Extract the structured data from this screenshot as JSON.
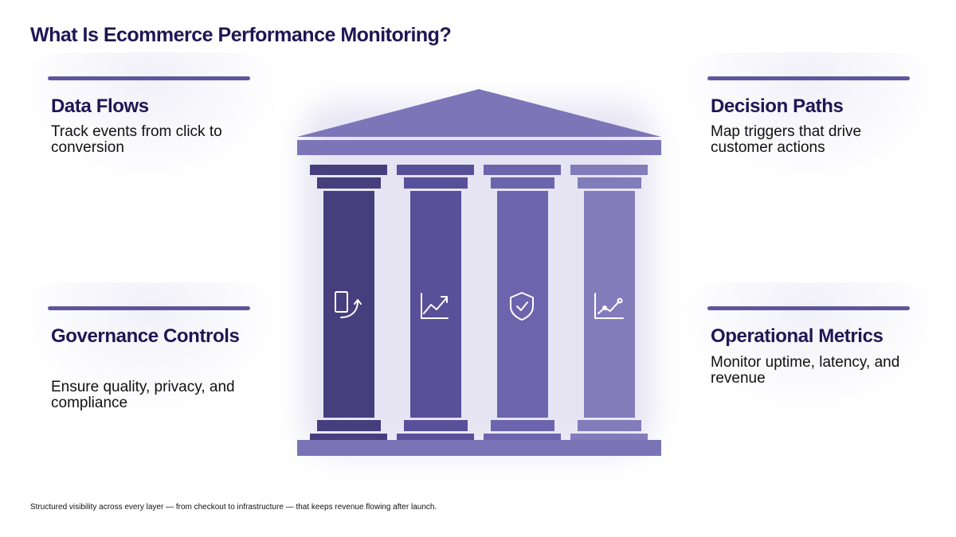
{
  "title": "What Is Ecommerce Performance Monitoring?",
  "cards": {
    "data_flows": {
      "heading": "Data Flows",
      "description": "Track events from click to conversion"
    },
    "governance": {
      "heading": "Governance Controls",
      "description": "Ensure quality, privacy, and compliance"
    },
    "decision_paths": {
      "heading": "Decision Paths",
      "description": "Map triggers that drive customer actions"
    },
    "operational_metrics": {
      "heading": "Operational Metrics",
      "description": "Monitor uptime, latency, and revenue"
    }
  },
  "pillars": [
    {
      "icon": "device-sync-icon",
      "color": "#473e7d"
    },
    {
      "icon": "trend-up-chart-icon",
      "color": "#59509a"
    },
    {
      "icon": "shield-check-icon",
      "color": "#6c64ad"
    },
    {
      "icon": "line-chart-points-icon",
      "color": "#827cbb"
    }
  ],
  "colors": {
    "title": "#1f1654",
    "accent_bar": "#5e559f",
    "roof": "#7c76b8",
    "base": "#7a73b5"
  },
  "footer": "Structured visibility across every layer — from checkout to infrastructure — that keeps revenue flowing after launch."
}
